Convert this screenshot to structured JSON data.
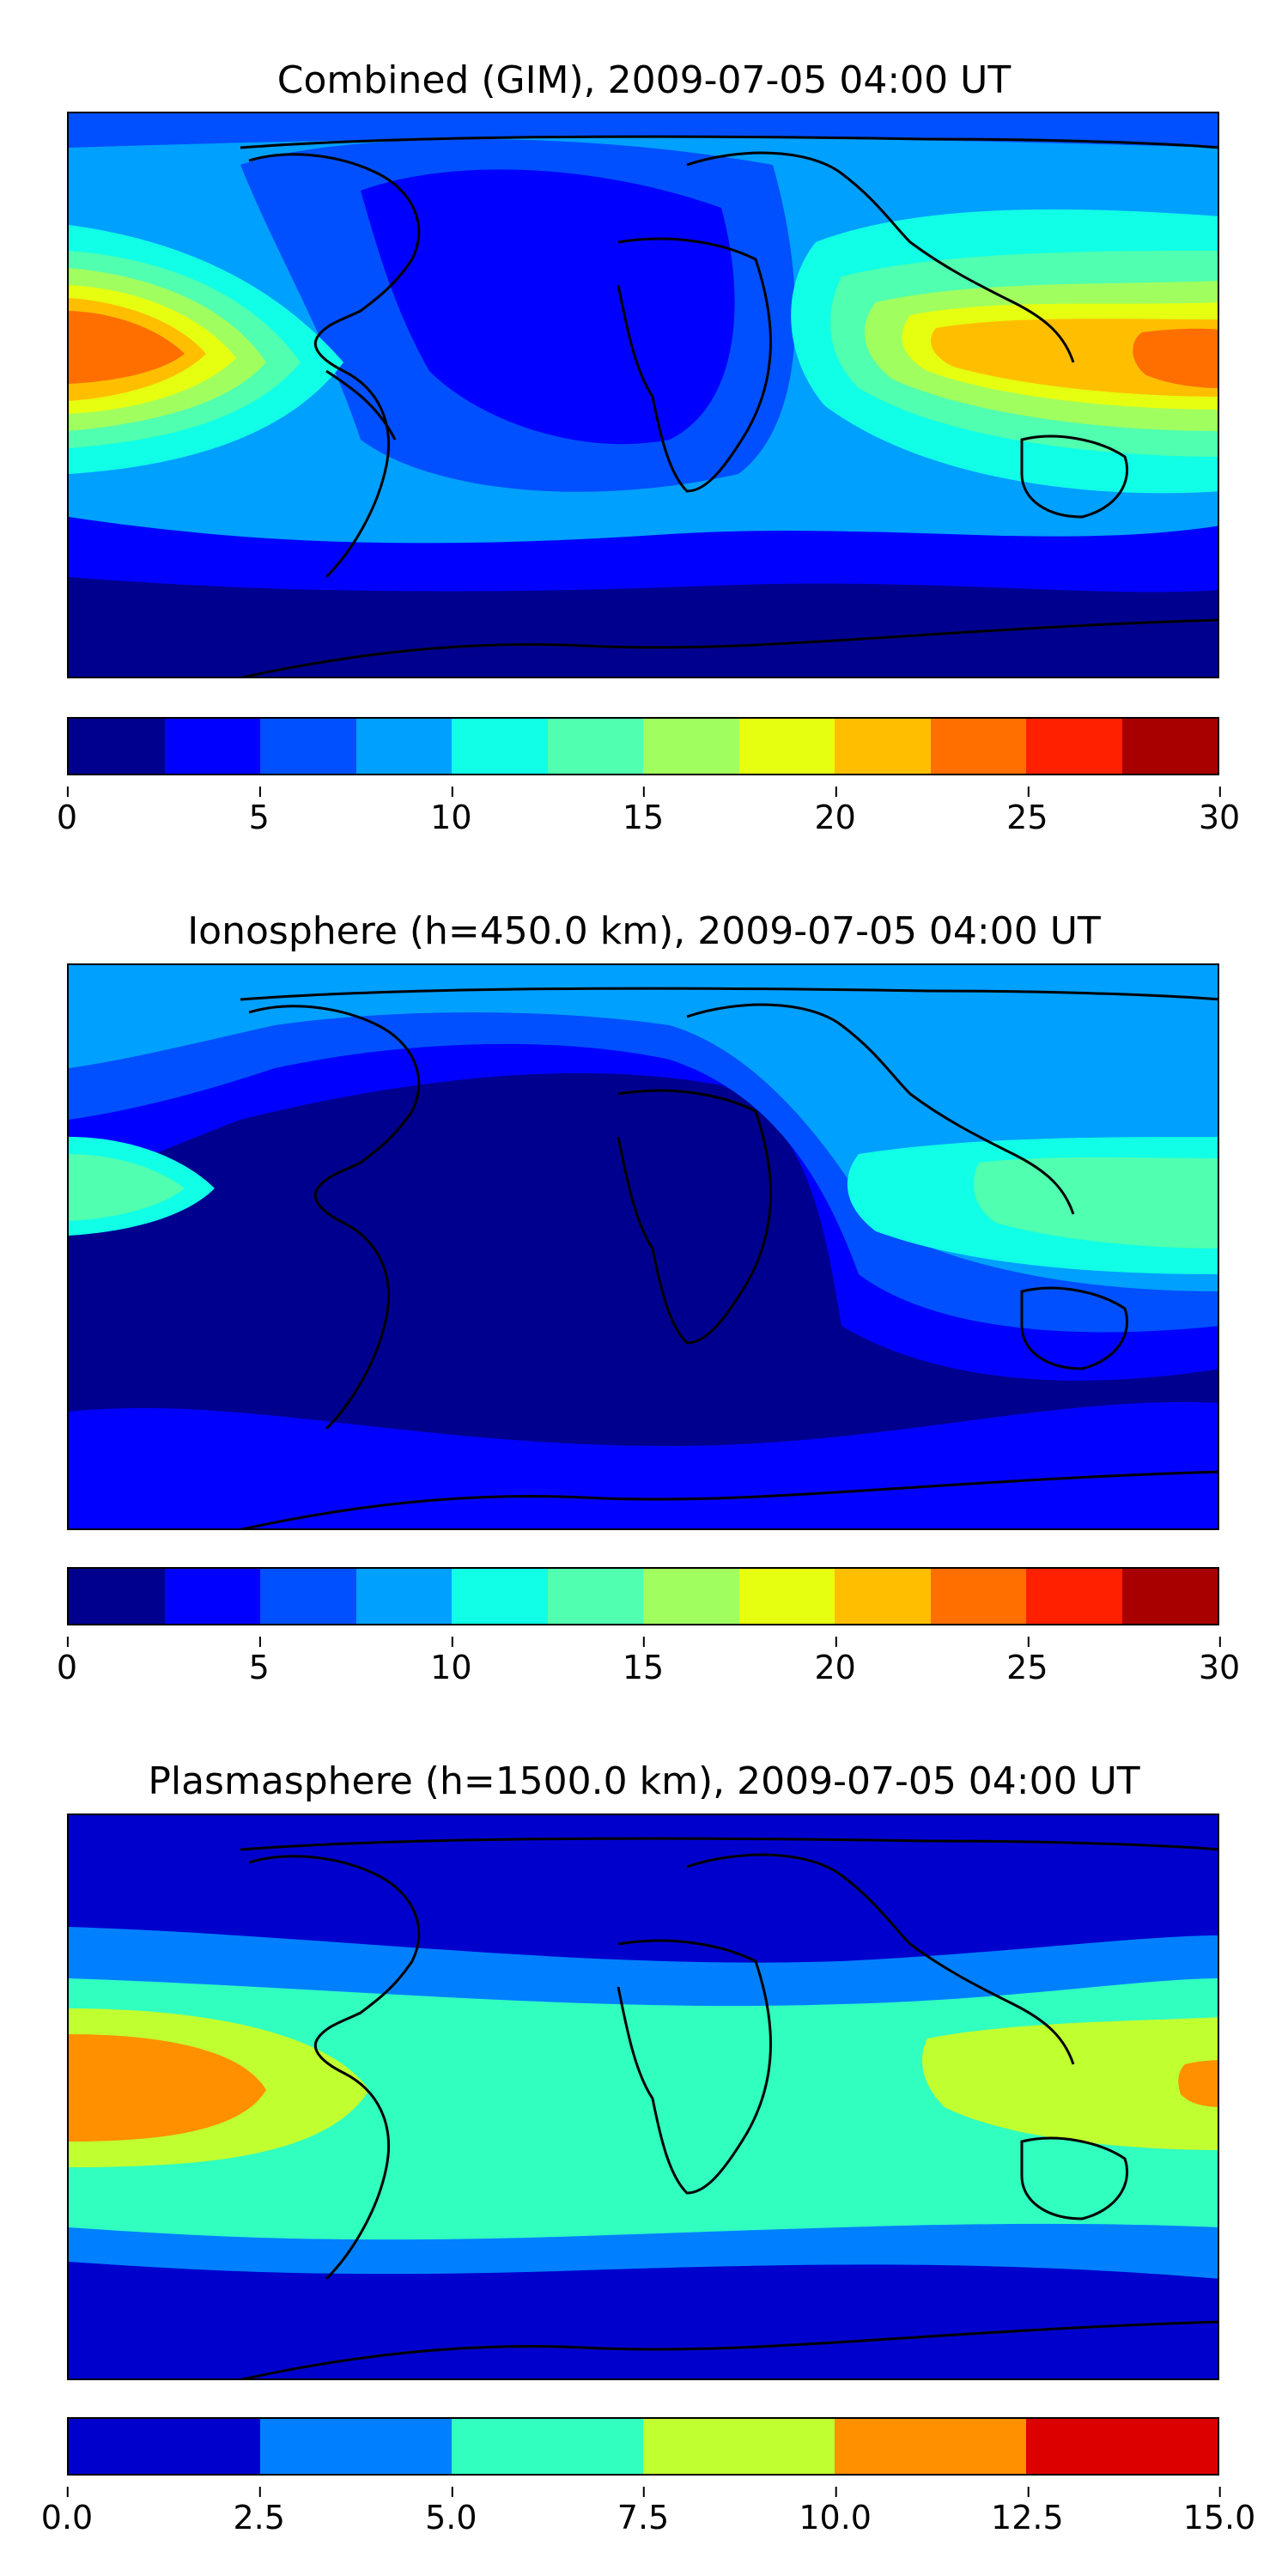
{
  "panels": [
    {
      "title": "Combined (GIM), 2009-07-05 04:00 UT",
      "colormap": [
        "#00008f",
        "#0000ff",
        "#0050ff",
        "#00a0ff",
        "#10ffe6",
        "#50ffaf",
        "#a0ff5f",
        "#e6ff10",
        "#ffbf00",
        "#ff6f00",
        "#ff2000",
        "#a80000"
      ],
      "colorbar_ticks": [
        "0",
        "5",
        "10",
        "15",
        "20",
        "25",
        "30"
      ],
      "colorbar_range": [
        0,
        30
      ]
    },
    {
      "title": "Ionosphere  (h=450.0 km), 2009-07-05 04:00 UT",
      "colormap": [
        "#00008f",
        "#0000ff",
        "#0050ff",
        "#00a0ff",
        "#10ffe6",
        "#50ffaf",
        "#a0ff5f",
        "#e6ff10",
        "#ffbf00",
        "#ff6f00",
        "#ff2000",
        "#a80000"
      ],
      "colorbar_ticks": [
        "0",
        "5",
        "10",
        "15",
        "20",
        "25",
        "30"
      ],
      "colorbar_range": [
        0,
        30
      ]
    },
    {
      "title": "Plasmasphere (h=1500.0 km), 2009-07-05 04:00 UT",
      "colormap": [
        "#0000cd",
        "#0080ff",
        "#30ffc0",
        "#c0ff30",
        "#ff9000",
        "#dd0000"
      ],
      "colorbar_ticks": [
        "0.0",
        "2.5",
        "5.0",
        "7.5",
        "10.0",
        "12.5",
        "15.0"
      ],
      "colorbar_range": [
        0,
        15
      ]
    }
  ]
}
